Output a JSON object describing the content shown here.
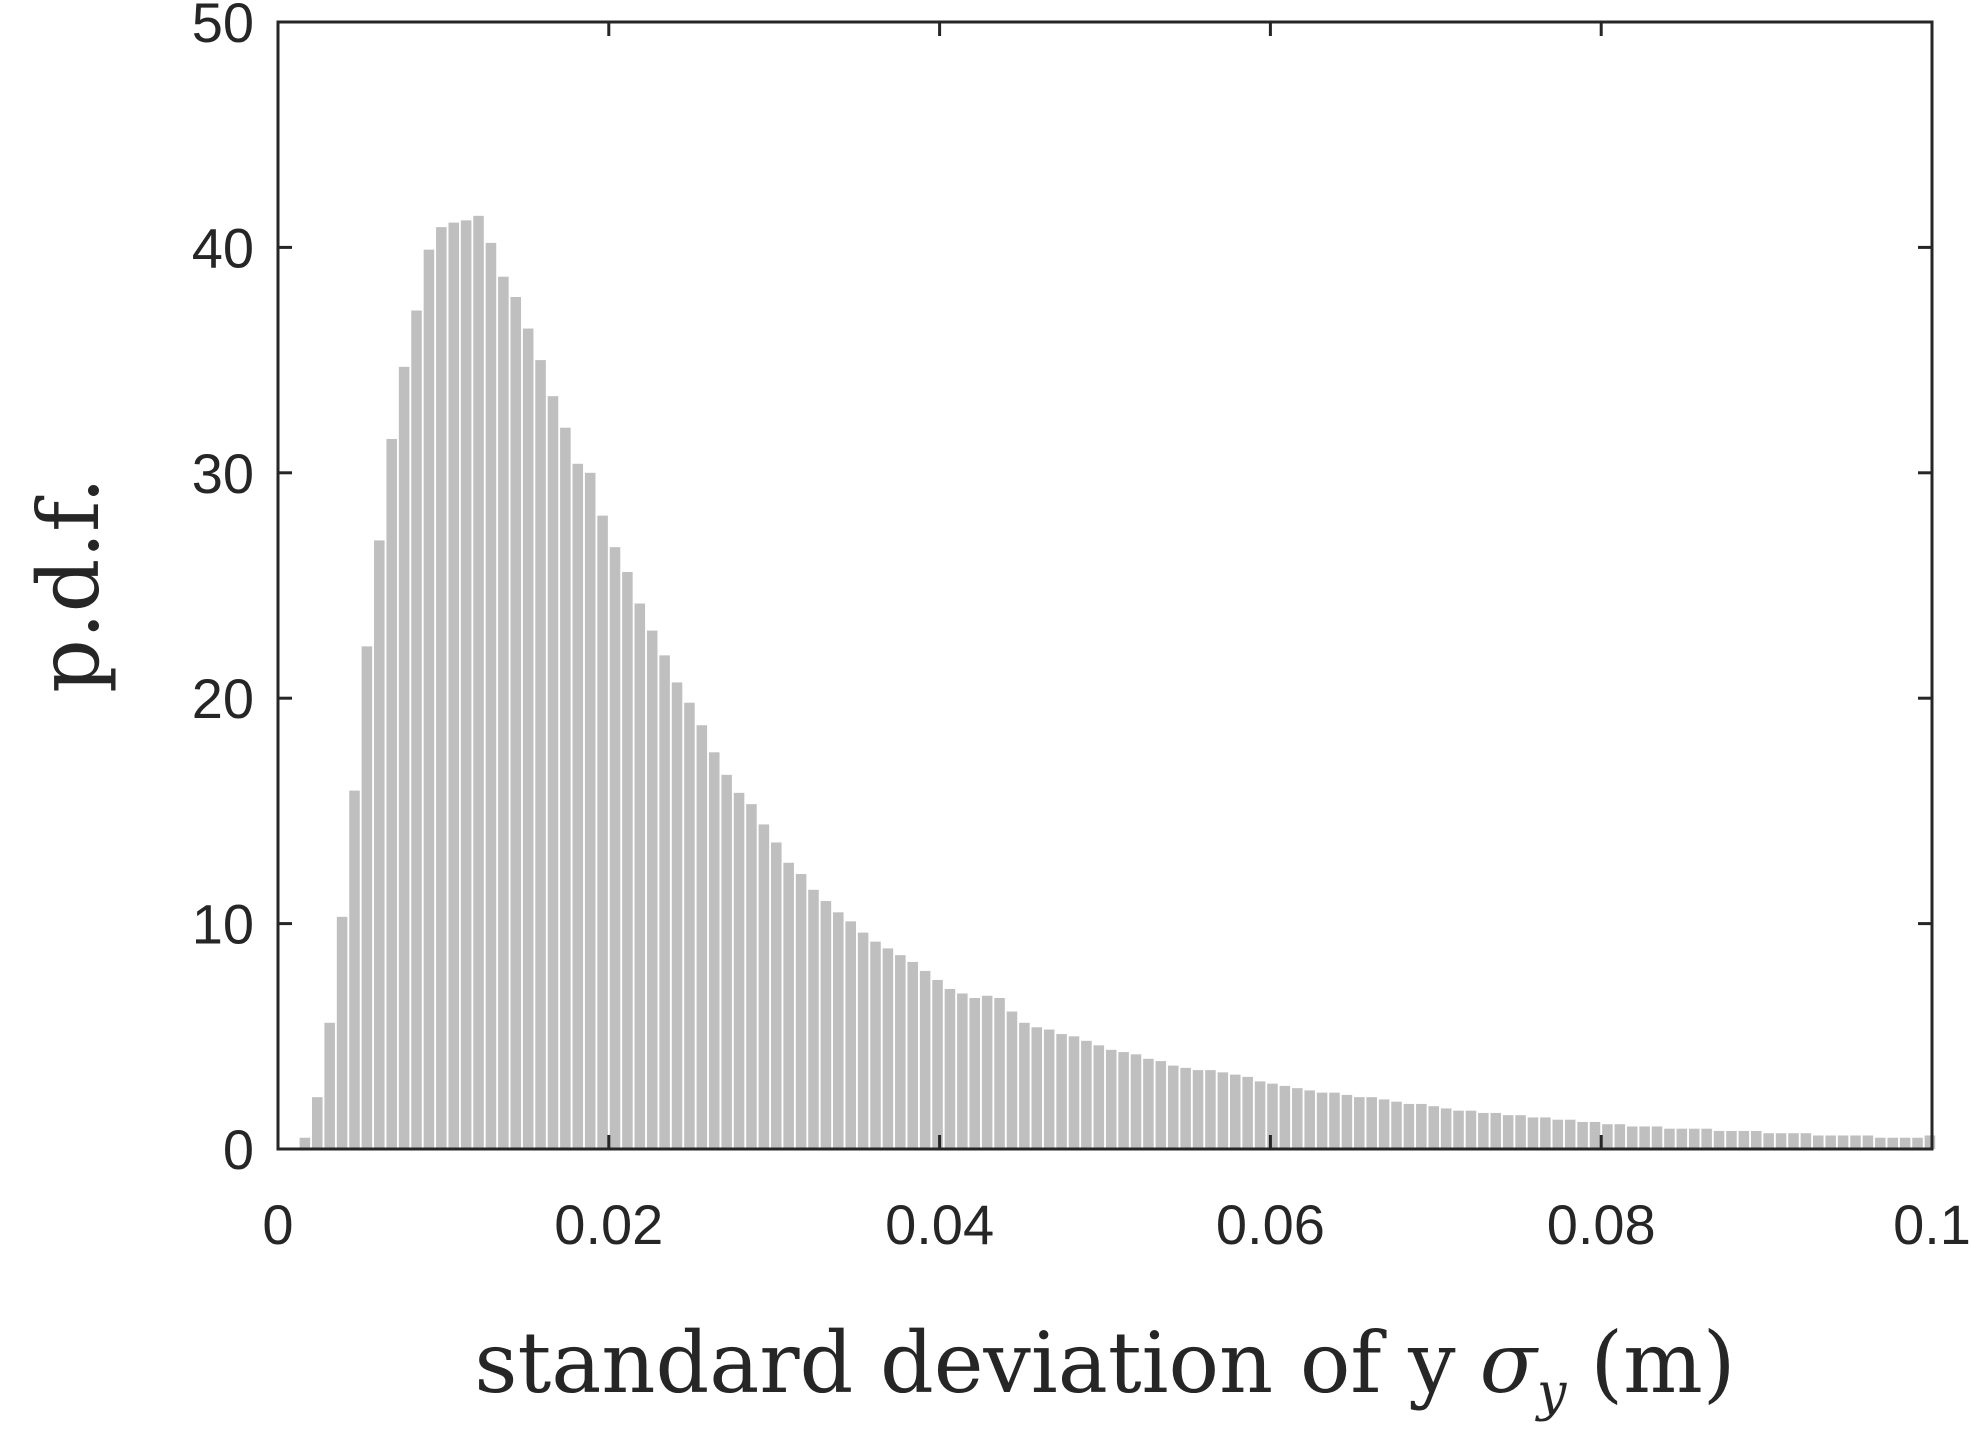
{
  "chart_data": {
    "type": "bar",
    "title": "",
    "xlabel": "standard deviation of y",
    "xlabel_symbol": "σ",
    "xlabel_subscript": "y",
    "xlabel_unit": "(m)",
    "ylabel": "p.d.f.",
    "xlim": [
      0,
      0.1
    ],
    "ylim": [
      0,
      50
    ],
    "xticks": [
      0,
      0.02,
      0.04,
      0.06,
      0.08,
      0.1
    ],
    "xtick_labels": [
      "0",
      "0.02",
      "0.04",
      "0.06",
      "0.08",
      "0.1"
    ],
    "yticks": [
      0,
      10,
      20,
      30,
      40,
      50
    ],
    "ytick_labels": [
      "0",
      "10",
      "20",
      "30",
      "40",
      "50"
    ],
    "grid": false,
    "bar_color": "#bfbfbf",
    "bin_width": 0.00075,
    "bin_start": 0.00125,
    "values": [
      0.5,
      2.3,
      5.6,
      10.3,
      15.9,
      22.3,
      27.0,
      31.5,
      34.7,
      37.2,
      39.9,
      40.9,
      41.1,
      41.2,
      41.4,
      40.2,
      38.7,
      37.8,
      36.4,
      35.0,
      33.4,
      32.0,
      30.4,
      30.0,
      28.1,
      26.7,
      25.6,
      24.2,
      23.0,
      21.9,
      20.7,
      19.8,
      18.8,
      17.6,
      16.6,
      15.8,
      15.3,
      14.4,
      13.6,
      12.7,
      12.2,
      11.5,
      11.0,
      10.5,
      10.1,
      9.6,
      9.2,
      8.9,
      8.6,
      8.3,
      7.9,
      7.5,
      7.1,
      6.9,
      6.7,
      6.8,
      6.7,
      6.1,
      5.6,
      5.4,
      5.3,
      5.1,
      5.0,
      4.8,
      4.6,
      4.4,
      4.3,
      4.2,
      4.0,
      3.9,
      3.7,
      3.6,
      3.5,
      3.5,
      3.4,
      3.3,
      3.2,
      3.0,
      2.9,
      2.8,
      2.7,
      2.6,
      2.5,
      2.5,
      2.4,
      2.3,
      2.3,
      2.2,
      2.1,
      2.0,
      2.0,
      1.9,
      1.8,
      1.7,
      1.7,
      1.6,
      1.6,
      1.5,
      1.5,
      1.4,
      1.4,
      1.3,
      1.3,
      1.2,
      1.2,
      1.1,
      1.1,
      1.0,
      1.0,
      1.0,
      0.9,
      0.9,
      0.9,
      0.9,
      0.8,
      0.8,
      0.8,
      0.8,
      0.7,
      0.7,
      0.7,
      0.7,
      0.6,
      0.6,
      0.6,
      0.6,
      0.6,
      0.5,
      0.5,
      0.5,
      0.5,
      0.6
    ]
  }
}
